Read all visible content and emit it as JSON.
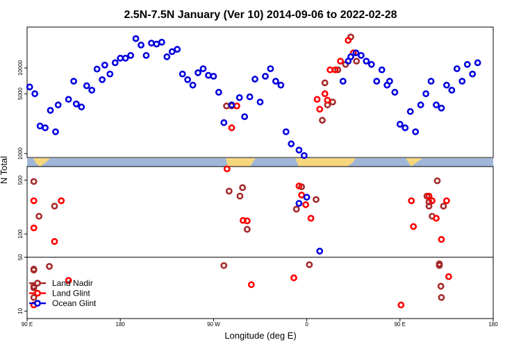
{
  "chart_data": {
    "type": "scatter",
    "title": "2.5N-7.5N January (Ver 10)   2014-09-06 to 2022-02-28",
    "xlabel": "Longitude (deg E)",
    "ylabel": "N Total",
    "x_ticks": [
      {
        "value": 90,
        "label": "90 E"
      },
      {
        "value": 180,
        "label": "180"
      },
      {
        "value": 270,
        "label": "90 W"
      },
      {
        "value": 360,
        "label": "0"
      },
      {
        "value": 450,
        "label": "90 E"
      },
      {
        "value": 540,
        "label": "180"
      }
    ],
    "xlim": [
      90,
      540
    ],
    "y_scale": "log",
    "upper_panel": {
      "ylim": [
        900,
        30000
      ],
      "y_ticks": [
        {
          "value": 1000,
          "label": "1000"
        },
        {
          "value": 5000,
          "label": "5000"
        },
        {
          "value": 10000,
          "label": "10000"
        }
      ]
    },
    "lower_panel": {
      "ylim": [
        8,
        750
      ],
      "y_ticks": [
        {
          "value": 10,
          "label": "10"
        },
        {
          "value": 50,
          "label": "50"
        },
        {
          "value": 100,
          "label": "100"
        },
        {
          "value": 500,
          "label": "500"
        }
      ]
    },
    "series": [
      {
        "name": "Land Nadir",
        "color": "#a52a2a",
        "points": [
          [
            96.5,
            480
          ],
          [
            96.5,
            35
          ],
          [
            96.5,
            34
          ],
          [
            96.5,
            21
          ],
          [
            96.5,
            20
          ],
          [
            96.5,
            15
          ],
          [
            101.5,
            170
          ],
          [
            111.5,
            38
          ],
          [
            116.5,
            230
          ],
          [
            280,
            39
          ],
          [
            285,
            360
          ],
          [
            282.5,
            3600
          ],
          [
            287.5,
            3600
          ],
          [
            295.5,
            310
          ],
          [
            298,
            400
          ],
          [
            302.5,
            115
          ],
          [
            350,
            210
          ],
          [
            355,
            410
          ],
          [
            362.5,
            40
          ],
          [
            369,
            280
          ],
          [
            375,
            2450
          ],
          [
            377.5,
            6700
          ],
          [
            380,
            3700
          ],
          [
            385,
            4000
          ],
          [
            390,
            9500
          ],
          [
            397.5,
            11000
          ],
          [
            402.5,
            23000
          ],
          [
            408,
            12000
          ],
          [
            476,
            310
          ],
          [
            478,
            230
          ],
          [
            478,
            260
          ],
          [
            481,
            170
          ],
          [
            486,
            490
          ],
          [
            488,
            39
          ],
          [
            488,
            41
          ],
          [
            489.5,
            21
          ],
          [
            490,
            15
          ],
          [
            492,
            230
          ]
        ]
      },
      {
        "name": "Land Glint",
        "color": "#ff0000",
        "points": [
          [
            96.5,
            270
          ],
          [
            96.5,
            120
          ],
          [
            96.5,
            12
          ],
          [
            116.5,
            80
          ],
          [
            123,
            270
          ],
          [
            130,
            25
          ],
          [
            283,
            700
          ],
          [
            287.5,
            2000
          ],
          [
            292.5,
            3600
          ],
          [
            298.5,
            150
          ],
          [
            302.5,
            148
          ],
          [
            306.5,
            22
          ],
          [
            347.5,
            27
          ],
          [
            352.5,
            420
          ],
          [
            355,
            320
          ],
          [
            359,
            240
          ],
          [
            364,
            160
          ],
          [
            370,
            4300
          ],
          [
            372.5,
            3300
          ],
          [
            377.5,
            5000
          ],
          [
            380,
            4200
          ],
          [
            382.5,
            9500
          ],
          [
            387.5,
            9500
          ],
          [
            392.5,
            12000
          ],
          [
            400,
            21000
          ],
          [
            405,
            15000
          ],
          [
            451,
            12
          ],
          [
            461,
            270
          ],
          [
            463,
            125
          ],
          [
            478,
            310
          ],
          [
            481,
            270
          ],
          [
            485,
            160
          ],
          [
            490,
            85
          ],
          [
            495,
            270
          ],
          [
            497,
            28
          ]
        ]
      },
      {
        "name": "Ocean Glint",
        "color": "#0000e0",
        "points": [
          [
            92.5,
            6000
          ],
          [
            97.5,
            5000
          ],
          [
            102.5,
            2100
          ],
          [
            107.5,
            2000
          ],
          [
            112.5,
            3200
          ],
          [
            117.5,
            1800
          ],
          [
            120,
            3700
          ],
          [
            130,
            4300
          ],
          [
            135,
            7000
          ],
          [
            137.5,
            3800
          ],
          [
            142.5,
            3500
          ],
          [
            147.5,
            6200
          ],
          [
            152.5,
            5500
          ],
          [
            157.5,
            9700
          ],
          [
            162.5,
            7300
          ],
          [
            165,
            10800
          ],
          [
            170,
            8500
          ],
          [
            175,
            11500
          ],
          [
            180,
            13000
          ],
          [
            185,
            13000
          ],
          [
            190,
            14000
          ],
          [
            195,
            22000
          ],
          [
            200,
            18500
          ],
          [
            205,
            14000
          ],
          [
            210,
            19500
          ],
          [
            215,
            19000
          ],
          [
            220,
            20000
          ],
          [
            225,
            13500
          ],
          [
            230,
            15500
          ],
          [
            235,
            16500
          ],
          [
            240,
            8500
          ],
          [
            245,
            7300
          ],
          [
            250,
            6300
          ],
          [
            255,
            8800
          ],
          [
            260,
            9800
          ],
          [
            265,
            8200
          ],
          [
            270,
            8000
          ],
          [
            275,
            5200
          ],
          [
            280,
            2300
          ],
          [
            287.5,
            3700
          ],
          [
            295,
            4500
          ],
          [
            300,
            2700
          ],
          [
            305,
            4600
          ],
          [
            310,
            7400
          ],
          [
            315,
            4000
          ],
          [
            320,
            8000
          ],
          [
            325,
            9800
          ],
          [
            330,
            7000
          ],
          [
            335,
            6300
          ],
          [
            340,
            1800
          ],
          [
            345,
            1300
          ],
          [
            352.5,
            1100
          ],
          [
            357.5,
            950
          ],
          [
            352.5,
            250
          ],
          [
            360,
            300
          ],
          [
            372.5,
            60
          ],
          [
            395,
            7000
          ],
          [
            400,
            12000
          ],
          [
            402.5,
            13500
          ],
          [
            407.5,
            15000
          ],
          [
            412.5,
            14000
          ],
          [
            417.5,
            12000
          ],
          [
            422.5,
            11000
          ],
          [
            427.5,
            7000
          ],
          [
            432.5,
            9500
          ],
          [
            437.5,
            6300
          ],
          [
            440,
            7000
          ],
          [
            445,
            5200
          ],
          [
            450,
            2200
          ],
          [
            455,
            2000
          ],
          [
            460,
            3100
          ],
          [
            465,
            1800
          ],
          [
            470,
            3700
          ],
          [
            475,
            5000
          ],
          [
            480,
            7000
          ],
          [
            485,
            3700
          ],
          [
            490,
            3400
          ],
          [
            495,
            6300
          ],
          [
            500,
            5500
          ],
          [
            505,
            9800
          ],
          [
            510,
            7000
          ],
          [
            515,
            11000
          ],
          [
            520,
            8500
          ],
          [
            525,
            11500
          ]
        ]
      }
    ],
    "legend": {
      "position": "bottom-left"
    }
  }
}
